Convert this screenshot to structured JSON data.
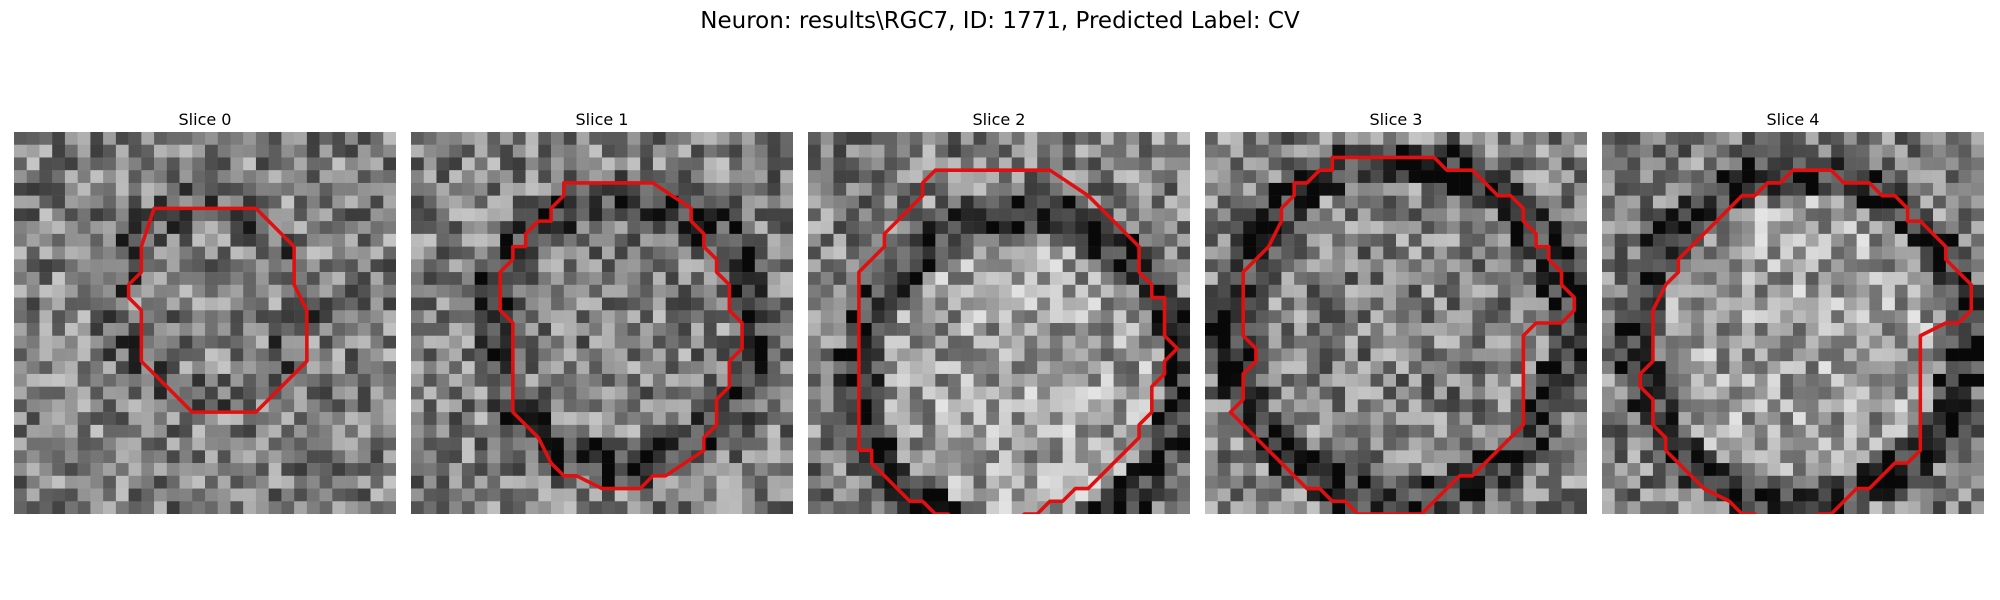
{
  "figure": {
    "title": "Neuron: results\\RGC7, ID: 1771, Predicted Label: CV"
  },
  "panels": [
    {
      "title": "Slice 0",
      "seed": 11,
      "bright_center": false,
      "ring_dark": 0.15
    },
    {
      "title": "Slice 1",
      "seed": 23,
      "bright_center": false,
      "ring_dark": 0.25
    },
    {
      "title": "Slice 2",
      "seed": 37,
      "bright_center": true,
      "ring_dark": 0.3
    },
    {
      "title": "Slice 3",
      "seed": 41,
      "bright_center": false,
      "ring_dark": 0.3
    },
    {
      "title": "Slice 4",
      "seed": 53,
      "bright_center": true,
      "ring_dark": 0.3
    }
  ],
  "colors": {
    "contour": "#e01010",
    "background": "#ffffff"
  },
  "grid_cells": 30
}
